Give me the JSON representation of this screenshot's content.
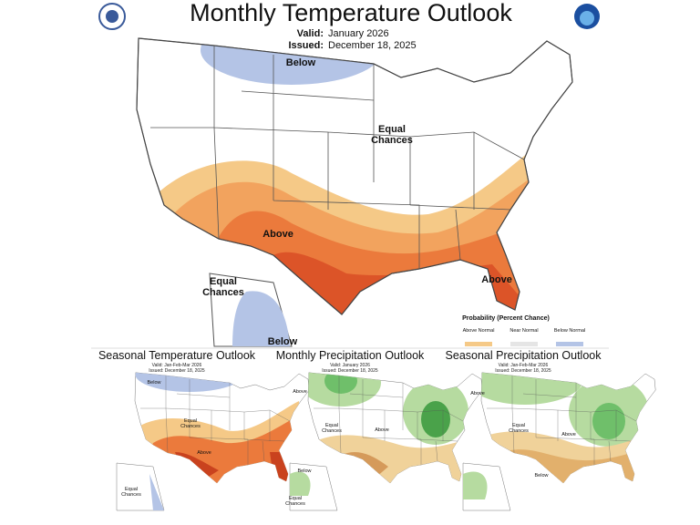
{
  "main": {
    "title": "Monthly Temperature Outlook",
    "valid_label": "Valid:",
    "valid": "January 2026",
    "issued_label": "Issued:",
    "issued": "December 18, 2025",
    "labels": [
      "Below",
      "Equal Chances",
      "Above",
      "Above",
      "Equal Chances",
      "Below"
    ],
    "legend": {
      "title": "Probability (Percent Chance)",
      "columns": [
        "Above Normal",
        "Near Normal",
        "Below Normal"
      ]
    }
  },
  "panels": [
    {
      "title": "Seasonal Temperature Outlook",
      "valid": "Valid: Jan-Feb-Mar 2026",
      "issued": "Issued: December 18, 2025",
      "labels": [
        "Below",
        "Equal Chances",
        "Above",
        "Equal Chances"
      ]
    },
    {
      "title": "Monthly Precipitation Outlook",
      "valid": "Valid: January 2026",
      "issued": "Issued: December 18, 2025",
      "labels": [
        "Above",
        "Equal Chances",
        "Above",
        "Below",
        "Equal Chances"
      ]
    },
    {
      "title": "Seasonal Precipitation Outlook",
      "valid": "Valid: Jan-Feb-Mar 2026",
      "issued": "Issued: December 18, 2025",
      "labels": [
        "Above",
        "Equal Chances",
        "Above",
        "Below"
      ]
    }
  ]
}
